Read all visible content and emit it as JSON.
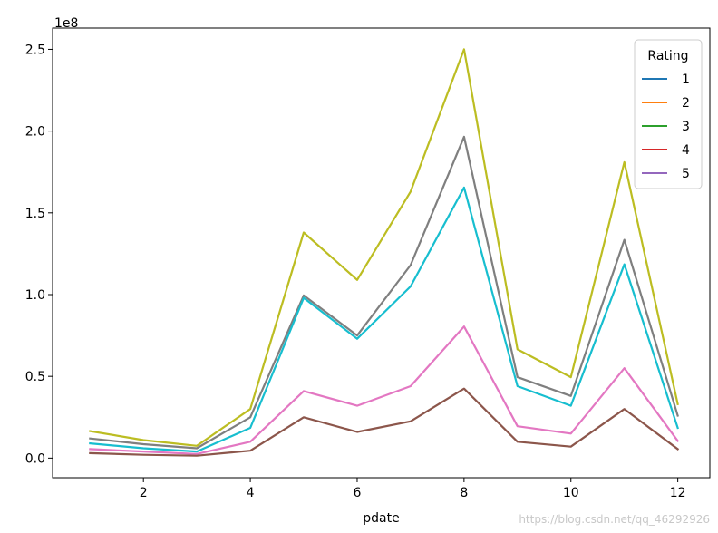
{
  "chart_data": {
    "type": "line",
    "xlabel": "pdate",
    "ylabel": "",
    "y_exponent": "1e8",
    "xlim": [
      0.3,
      12.6
    ],
    "ylim": [
      -0.12,
      2.63
    ],
    "x": [
      1,
      2,
      3,
      4,
      5,
      6,
      7,
      8,
      9,
      10,
      11,
      12
    ],
    "x_ticks": [
      2,
      4,
      6,
      8,
      10,
      12
    ],
    "x_tick_labels": [
      "2",
      "4",
      "6",
      "8",
      "10",
      "12"
    ],
    "y_ticks": [
      0.0,
      0.5,
      1.0,
      1.5,
      2.0,
      2.5
    ],
    "y_tick_labels": [
      "0.0",
      "0.5",
      "1.0",
      "1.5",
      "2.0",
      "2.5"
    ],
    "grid": false,
    "legend": {
      "title": "Rating",
      "placement": "top-right",
      "entries": [
        {
          "label": "1",
          "color": "#1f77b4"
        },
        {
          "label": "2",
          "color": "#ff7f0e"
        },
        {
          "label": "3",
          "color": "#2ca02c"
        },
        {
          "label": "4",
          "color": "#d62728"
        },
        {
          "label": "5",
          "color": "#9467bd"
        }
      ]
    },
    "series": [
      {
        "color": "#bcbd22",
        "values": [
          0.165,
          0.11,
          0.075,
          0.3,
          1.38,
          1.09,
          1.63,
          2.5,
          0.665,
          0.495,
          1.81,
          0.33
        ]
      },
      {
        "color": "#7f7f7f",
        "values": [
          0.12,
          0.085,
          0.06,
          0.25,
          0.995,
          0.75,
          1.18,
          1.965,
          0.495,
          0.38,
          1.335,
          0.26
        ]
      },
      {
        "color": "#17becf",
        "values": [
          0.09,
          0.06,
          0.04,
          0.185,
          0.98,
          0.73,
          1.05,
          1.655,
          0.44,
          0.32,
          1.185,
          0.185
        ]
      },
      {
        "color": "#e377c2",
        "values": [
          0.055,
          0.04,
          0.025,
          0.1,
          0.41,
          0.32,
          0.44,
          0.805,
          0.195,
          0.15,
          0.55,
          0.105
        ]
      },
      {
        "color": "#8c564b",
        "values": [
          0.03,
          0.02,
          0.015,
          0.045,
          0.25,
          0.16,
          0.225,
          0.425,
          0.1,
          0.07,
          0.3,
          0.055
        ]
      }
    ]
  },
  "watermark": "https://blog.csdn.net/qq_46292926"
}
